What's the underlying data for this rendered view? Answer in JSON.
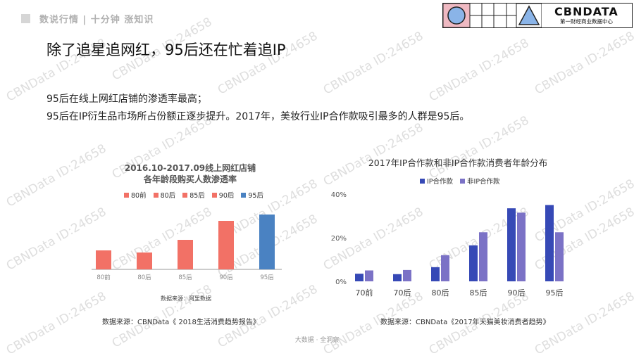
{
  "header": {
    "text": "数说行情 | 十分钟 涨知识"
  },
  "logo": {
    "text": "CBNDATA",
    "sub": "第一财经商业数据中心"
  },
  "title": "除了追星追网红，95后还在忙着追IP",
  "subtitles": [
    "95后在线上网红店铺的渗透率最高；",
    "95后在IP衍生品市场所占份额正逐步提升。2017年，美妆行业IP合作款吸引最多的人群是95后。"
  ],
  "watermark": "CBNData ID:24658",
  "footer": "大数据 · 全洞察",
  "colors": {
    "coral": "#f27166",
    "blue": "#4a82c2",
    "navy": "#3649b6",
    "lavender": "#7b72c6"
  },
  "chart_data": [
    {
      "type": "bar",
      "title": "2016.10-2017.09线上网红店铺",
      "subtitle": "各年龄段购买人数渗透率",
      "categories": [
        "80前",
        "80后",
        "85后",
        "90后",
        "95后"
      ],
      "series": [
        {
          "name": "渗透率",
          "values": [
            0.9,
            0.8,
            1.4,
            2.3,
            2.6
          ]
        }
      ],
      "legend": [
        "80前",
        "80后",
        "85后",
        "90后",
        "95后"
      ],
      "bar_colors": [
        "#f27166",
        "#f27166",
        "#f27166",
        "#f27166",
        "#4a82c2"
      ],
      "note": "数据来源：阿里数据",
      "source": "数据来源：CBNData《 2018生活消费趋势报告》",
      "ylim": [
        0,
        3
      ],
      "legend_position": "top",
      "grid": false
    },
    {
      "type": "bar",
      "title": "2017年IP合作款和非IP合作款消费者年龄分布",
      "categories": [
        "70前",
        "70后",
        "80后",
        "85后",
        "90后",
        "95后"
      ],
      "series": [
        {
          "name": "IP合作款",
          "values": [
            3.5,
            3.3,
            6.5,
            16.5,
            33.5,
            35
          ]
        },
        {
          "name": "非IP合作款",
          "values": [
            5,
            5.2,
            12,
            22.5,
            31.5,
            22.5
          ]
        }
      ],
      "yticks": [
        "0%",
        "20%",
        "40%"
      ],
      "ylim": [
        0,
        40
      ],
      "source": "数据来源：CBNData《2017年天猫美妆消费者趋势》",
      "legend_position": "top",
      "grid": false
    }
  ]
}
